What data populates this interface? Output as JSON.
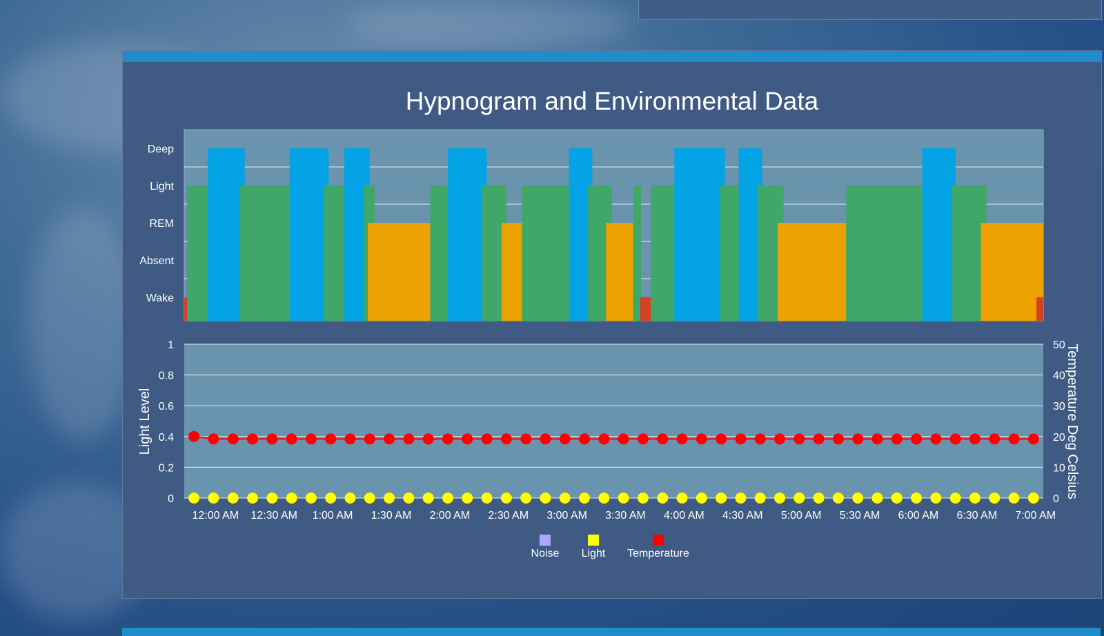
{
  "panel": {
    "title": "Hypnogram and Environmental Data"
  },
  "top_card": {
    "partial_text": "…"
  },
  "colors": {
    "deep": "#04a3e6",
    "light": "#3fa868",
    "rem": "#eca100",
    "wake": "#d64025",
    "plot_bg": "#6a93ad",
    "accent_bar": "#1f8dca",
    "noise": "#a9a7ff",
    "light_series": "#ffff00",
    "temperature": "#ff0000"
  },
  "chart_data": [
    {
      "type": "bar",
      "name": "hypnogram",
      "stage_labels": [
        "Deep",
        "Light",
        "REM",
        "Absent",
        "Wake"
      ],
      "x_unit": "minutes after 11:44 PM",
      "xlim": [
        0,
        440
      ],
      "segments": [
        {
          "start": 0,
          "end": 1.5,
          "stage": "Wake"
        },
        {
          "start": 1.5,
          "end": 12,
          "stage": "Light"
        },
        {
          "start": 12,
          "end": 31,
          "stage": "Deep"
        },
        {
          "start": 28.5,
          "end": 54,
          "stage": "Light"
        },
        {
          "start": 54,
          "end": 74,
          "stage": "Deep"
        },
        {
          "start": 71.5,
          "end": 82,
          "stage": "Light"
        },
        {
          "start": 82,
          "end": 95,
          "stage": "Deep"
        },
        {
          "start": 92,
          "end": 97.5,
          "stage": "Light"
        },
        {
          "start": 94,
          "end": 126,
          "stage": "REM"
        },
        {
          "start": 126,
          "end": 135,
          "stage": "Light"
        },
        {
          "start": 135,
          "end": 155,
          "stage": "Deep"
        },
        {
          "start": 152.5,
          "end": 165,
          "stage": "Light"
        },
        {
          "start": 162.5,
          "end": 173,
          "stage": "REM"
        },
        {
          "start": 173,
          "end": 197,
          "stage": "Light"
        },
        {
          "start": 197,
          "end": 209,
          "stage": "Deep"
        },
        {
          "start": 206.5,
          "end": 219,
          "stage": "Light"
        },
        {
          "start": 216,
          "end": 230,
          "stage": "REM"
        },
        {
          "start": 230,
          "end": 234,
          "stage": "Light"
        },
        {
          "start": 233.5,
          "end": 239,
          "stage": "Wake"
        },
        {
          "start": 239,
          "end": 251,
          "stage": "Light"
        },
        {
          "start": 251,
          "end": 277,
          "stage": "Deep"
        },
        {
          "start": 274.5,
          "end": 284,
          "stage": "Light"
        },
        {
          "start": 284,
          "end": 296,
          "stage": "Deep"
        },
        {
          "start": 293.5,
          "end": 307,
          "stage": "Light"
        },
        {
          "start": 304,
          "end": 339,
          "stage": "REM"
        },
        {
          "start": 339,
          "end": 378,
          "stage": "Light"
        },
        {
          "start": 378,
          "end": 395,
          "stage": "Deep"
        },
        {
          "start": 393,
          "end": 411,
          "stage": "Light"
        },
        {
          "start": 408,
          "end": 440,
          "stage": "REM"
        },
        {
          "start": 436.5,
          "end": 440,
          "stage": "Wake"
        }
      ]
    },
    {
      "type": "scatter",
      "name": "environment",
      "x_tick_labels": [
        "12:00 AM",
        "12:30 AM",
        "1:00 AM",
        "1:30 AM",
        "2:00 AM",
        "2:30 AM",
        "3:00 AM",
        "3:30 AM",
        "4:00 AM",
        "4:30 AM",
        "5:00 AM",
        "5:30 AM",
        "6:00 AM",
        "6:30 AM",
        "7:00 AM"
      ],
      "x_unit": "minutes after 11:44 PM",
      "xlim": [
        0,
        440
      ],
      "y_left": {
        "label": "Light Level",
        "ticks": [
          "0",
          "0.2",
          "0.4",
          "0.6",
          "0.8",
          "1"
        ],
        "ylim": [
          0,
          1
        ]
      },
      "y_right": {
        "label": "Temperature Deg Celsius",
        "ticks": [
          "0",
          "10",
          "20",
          "30",
          "40",
          "50"
        ],
        "ylim": [
          0,
          50
        ]
      },
      "point_count": 44,
      "point_spacing_minutes": 10,
      "series": [
        {
          "name": "Noise",
          "axis": "left",
          "values": []
        },
        {
          "name": "Light",
          "axis": "left",
          "start_minute": 5,
          "values": [
            0,
            0,
            0,
            0,
            0,
            0,
            0,
            0,
            0,
            0,
            0,
            0,
            0,
            0,
            0,
            0,
            0,
            0,
            0,
            0,
            0,
            0,
            0,
            0,
            0,
            0,
            0,
            0,
            0,
            0,
            0,
            0,
            0,
            0,
            0,
            0,
            0,
            0,
            0,
            0,
            0,
            0,
            0,
            0
          ]
        },
        {
          "name": "Temperature",
          "axis": "right",
          "start_minute": 5,
          "values": [
            20,
            19.2,
            19.2,
            19.2,
            19.2,
            19.2,
            19.2,
            19.2,
            19.2,
            19.2,
            19.2,
            19.2,
            19.2,
            19.2,
            19.2,
            19.2,
            19.2,
            19.2,
            19.2,
            19.2,
            19.2,
            19.2,
            19.2,
            19.2,
            19.2,
            19.2,
            19.2,
            19.2,
            19.2,
            19.2,
            19.2,
            19.2,
            19.2,
            19.2,
            19.2,
            19.2,
            19.2,
            19.2,
            19.2,
            19.2,
            19.2,
            19.2,
            19.2,
            19.2
          ]
        }
      ],
      "legend": [
        "Noise",
        "Light",
        "Temperature"
      ]
    }
  ]
}
